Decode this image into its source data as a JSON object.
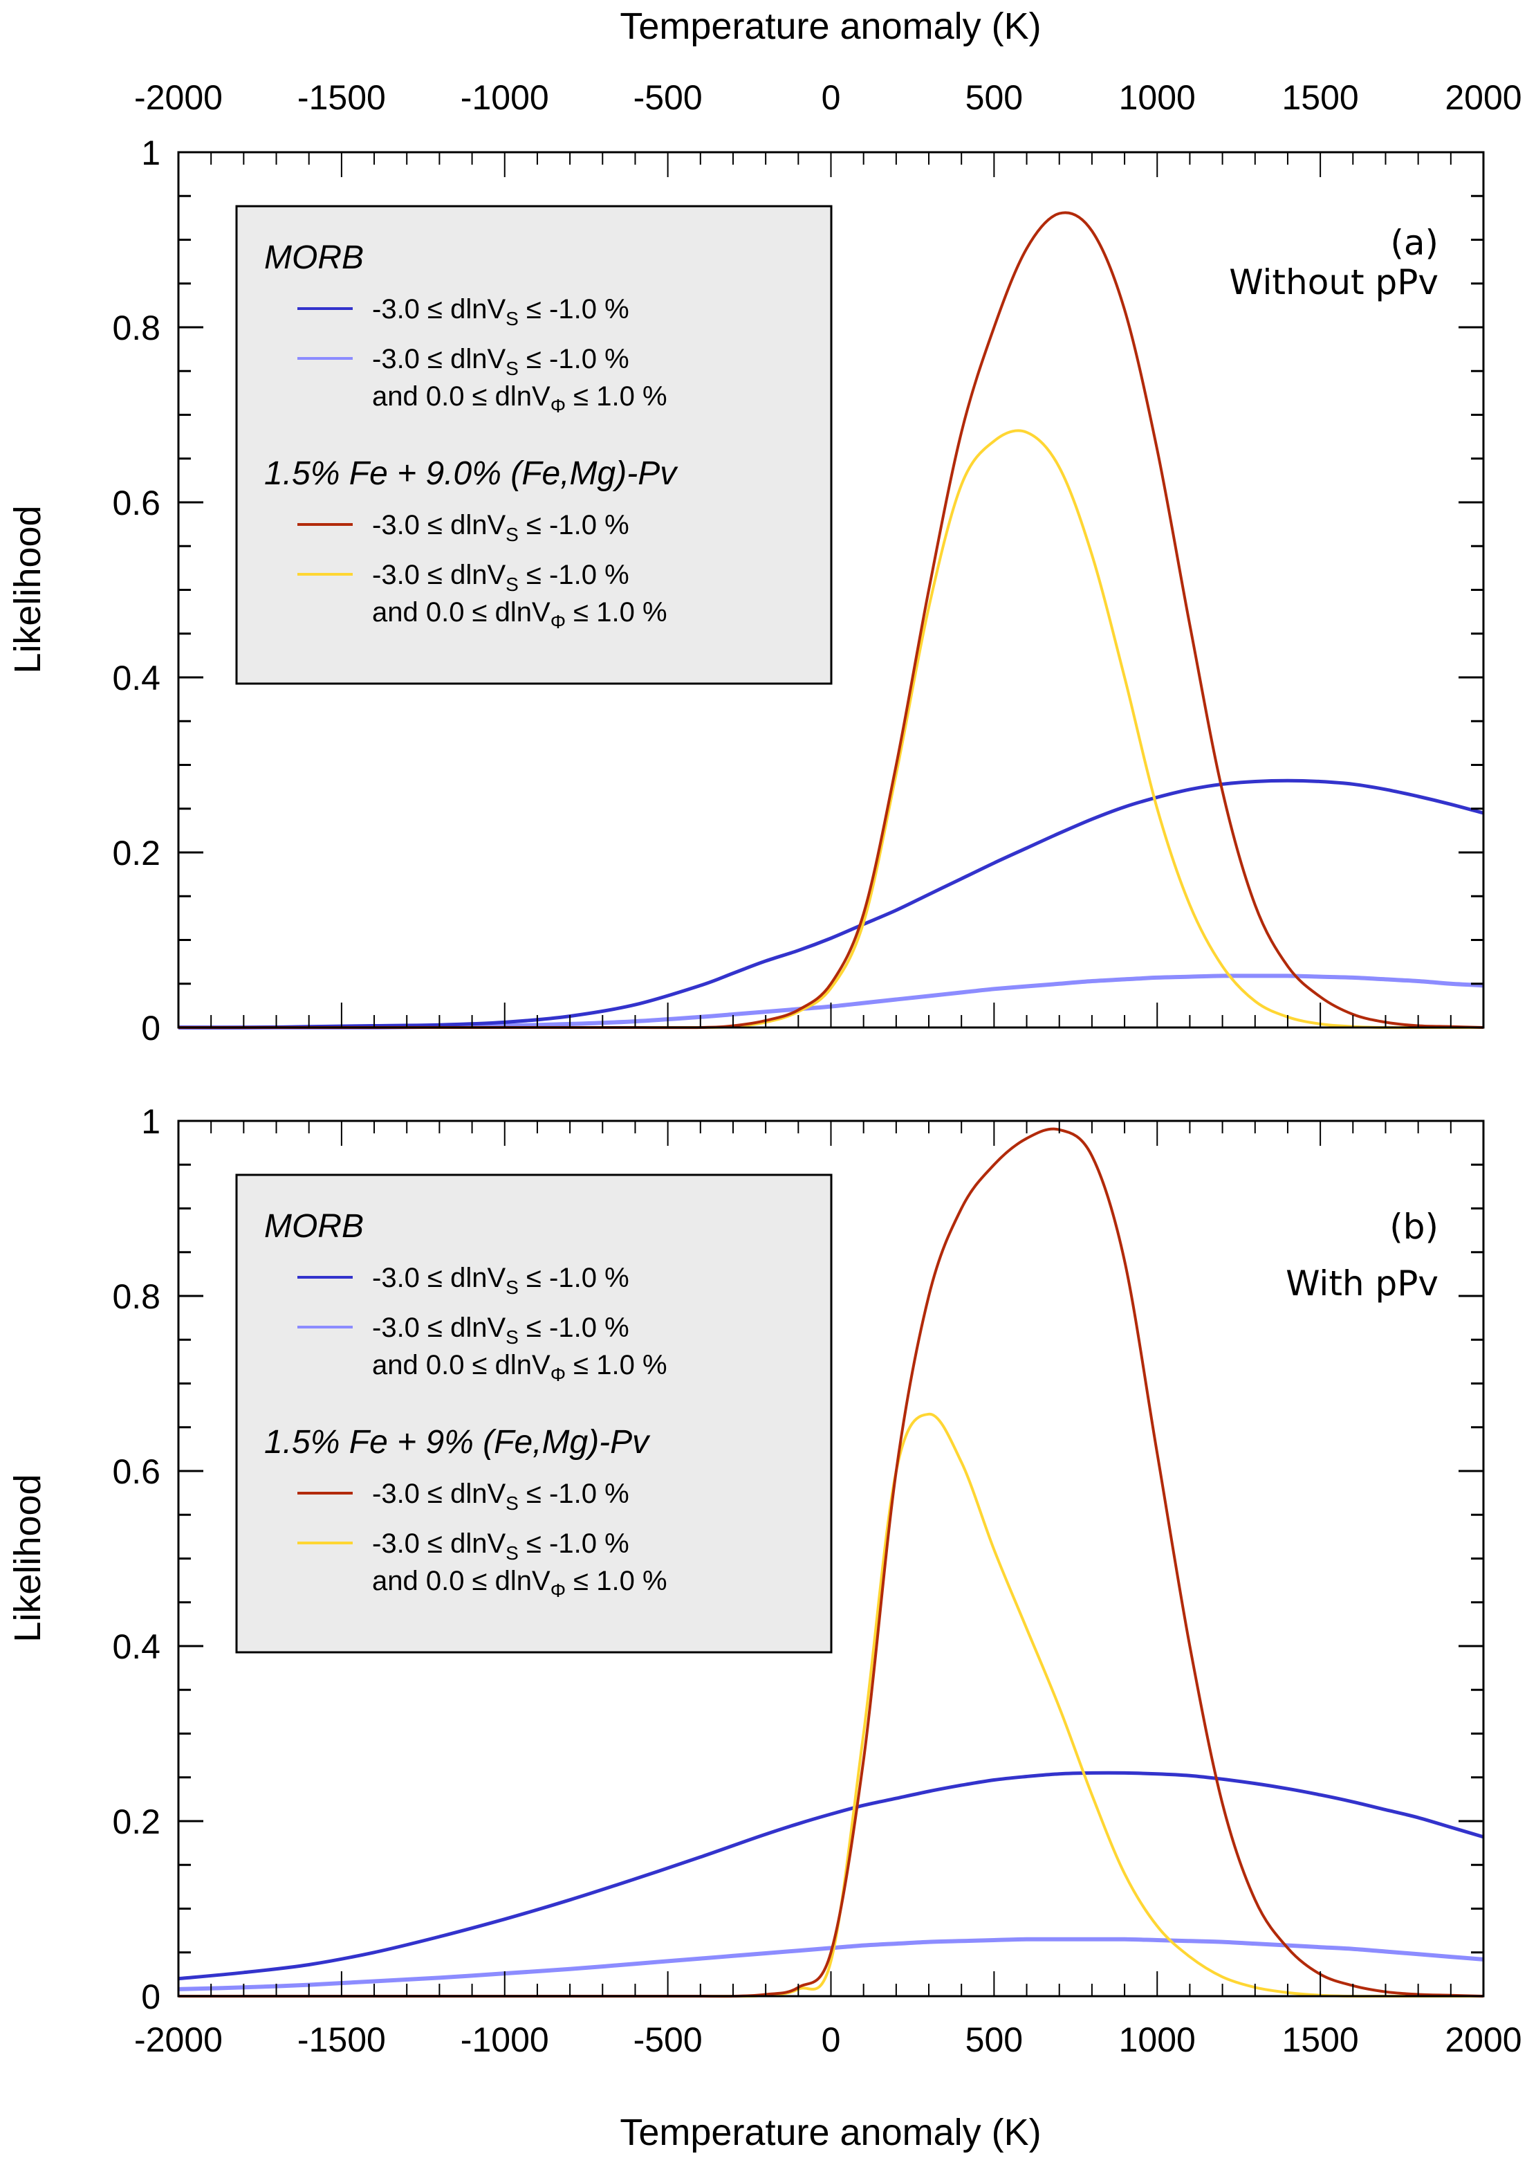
{
  "figure": {
    "top_axis_title": "Temperature anomaly (K)",
    "bottom_axis_title": "Temperature anomaly (K)"
  },
  "chart_data": [
    {
      "type": "line",
      "panel": "a",
      "panel_label": "(a)",
      "panel_subtitle": "Without pPv",
      "xlabel": "Temperature anomaly (K)",
      "xlabel_position": "top",
      "ylabel": "Likelihood",
      "xlim": [
        -2000,
        2000
      ],
      "ylim": [
        0,
        1
      ],
      "x_ticks": [
        -2000,
        -1500,
        -1000,
        -500,
        0,
        500,
        1000,
        1500,
        2000
      ],
      "x_tick_labels": [
        "-2000",
        "-1500",
        "-1000",
        "-500",
        "0",
        "500",
        "1000",
        "1500",
        "2000"
      ],
      "x_minor_step": 100,
      "y_ticks": [
        0,
        0.2,
        0.4,
        0.6,
        0.8,
        1
      ],
      "y_tick_labels": [
        "0",
        "0.2",
        "0.4",
        "0.6",
        "0.8",
        "1"
      ],
      "y_minor_step": 0.05,
      "grid": false,
      "legend": {
        "placement": "top-left",
        "groups": [
          {
            "heading": "MORB",
            "entries": [
              {
                "series": 0,
                "line1_pre": "-3.0 ≤ dlnV",
                "line1_sub": "S",
                "line1_post": " ≤ -1.0 %",
                "line2_pre": "",
                "line2_sub": "",
                "line2_post": ""
              },
              {
                "series": 1,
                "line1_pre": "-3.0 ≤ dlnV",
                "line1_sub": "S",
                "line1_post": " ≤ -1.0 %",
                "line2_pre": "and 0.0 ≤ dlnV",
                "line2_sub": "Φ",
                "line2_post": " ≤ 1.0 %"
              }
            ]
          },
          {
            "heading": "1.5% Fe + 9.0% (Fe,Mg)-Pv",
            "entries": [
              {
                "series": 2,
                "line1_pre": "-3.0 ≤ dlnV",
                "line1_sub": "S",
                "line1_post": " ≤ -1.0 %",
                "line2_pre": "",
                "line2_sub": "",
                "line2_post": ""
              },
              {
                "series": 3,
                "line1_pre": "-3.0 ≤ dlnV",
                "line1_sub": "S",
                "line1_post": " ≤ -1.0 %",
                "line2_pre": "and 0.0 ≤ dlnV",
                "line2_sub": "Φ",
                "line2_post": " ≤ 1.0 %"
              }
            ]
          }
        ]
      },
      "x": [
        -2000,
        -1800,
        -1600,
        -1400,
        -1200,
        -1000,
        -800,
        -600,
        -400,
        -300,
        -200,
        -100,
        0,
        100,
        200,
        300,
        400,
        500,
        600,
        700,
        800,
        900,
        1000,
        1100,
        1200,
        1300,
        1400,
        1500,
        1600,
        1700,
        1800,
        1900,
        2000
      ],
      "series": [
        {
          "name": "MORB: -3.0 ≤ dlnVS ≤ -1.0 %",
          "color": "#3333cc",
          "values": [
            0.0,
            0.0,
            0.001,
            0.002,
            0.003,
            0.006,
            0.013,
            0.026,
            0.048,
            0.062,
            0.076,
            0.088,
            0.102,
            0.118,
            0.134,
            0.152,
            0.17,
            0.188,
            0.205,
            0.222,
            0.238,
            0.252,
            0.263,
            0.272,
            0.278,
            0.281,
            0.282,
            0.281,
            0.278,
            0.272,
            0.264,
            0.255,
            0.245
          ]
        },
        {
          "name": "MORB: -3.0 ≤ dlnVS ≤ -1.0 % and 0.0 ≤ dlnVΦ ≤ 1.0 %",
          "color": "#8c8cff",
          "values": [
            0.0,
            0.0,
            0.0,
            0.0,
            0.001,
            0.002,
            0.004,
            0.007,
            0.012,
            0.015,
            0.018,
            0.021,
            0.024,
            0.028,
            0.032,
            0.036,
            0.04,
            0.044,
            0.047,
            0.05,
            0.053,
            0.055,
            0.057,
            0.058,
            0.059,
            0.059,
            0.059,
            0.058,
            0.057,
            0.055,
            0.053,
            0.05,
            0.048
          ]
        },
        {
          "name": "1.5% Fe + 9.0% (Fe,Mg)-Pv: -3.0 ≤ dlnVS ≤ -1.0 %",
          "color": "#b22a0a",
          "values": [
            0.0,
            0.0,
            0.0,
            0.0,
            0.0,
            0.0,
            0.0,
            0.0,
            0.0,
            0.002,
            0.008,
            0.02,
            0.05,
            0.13,
            0.3,
            0.5,
            0.68,
            0.8,
            0.89,
            0.93,
            0.91,
            0.82,
            0.66,
            0.46,
            0.27,
            0.14,
            0.07,
            0.035,
            0.015,
            0.006,
            0.002,
            0.001,
            0.0
          ]
        },
        {
          "name": "1.5% Fe + 9.0% (Fe,Mg)-Pv: -3.0 ≤ dlnVS ≤ -1.0 % and 0.0 ≤ dlnVΦ ≤ 1.0 %",
          "color": "#ffd633",
          "values": [
            0.0,
            0.0,
            0.0,
            0.0,
            0.0,
            0.0,
            0.0,
            0.0,
            0.0,
            0.001,
            0.006,
            0.018,
            0.045,
            0.12,
            0.29,
            0.48,
            0.62,
            0.67,
            0.68,
            0.64,
            0.54,
            0.4,
            0.25,
            0.14,
            0.07,
            0.03,
            0.012,
            0.004,
            0.001,
            0.0,
            0.0,
            0.0,
            0.0
          ]
        }
      ]
    },
    {
      "type": "line",
      "panel": "b",
      "panel_label": "(b)",
      "panel_subtitle": "With pPv",
      "xlabel": "Temperature anomaly (K)",
      "xlabel_position": "bottom",
      "ylabel": "Likelihood",
      "xlim": [
        -2000,
        2000
      ],
      "ylim": [
        0,
        1
      ],
      "x_ticks": [
        -2000,
        -1500,
        -1000,
        -500,
        0,
        500,
        1000,
        1500,
        2000
      ],
      "x_tick_labels": [
        "-2000",
        "-1500",
        "-1000",
        "-500",
        "0",
        "500",
        "1000",
        "1500",
        "2000"
      ],
      "x_minor_step": 100,
      "y_ticks": [
        0,
        0.2,
        0.4,
        0.6,
        0.8,
        1
      ],
      "y_tick_labels": [
        "0",
        "0.2",
        "0.4",
        "0.6",
        "0.8",
        "1"
      ],
      "y_minor_step": 0.05,
      "grid": false,
      "legend": {
        "placement": "top-left",
        "groups": [
          {
            "heading": "MORB",
            "entries": [
              {
                "series": 0,
                "line1_pre": "-3.0 ≤ dlnV",
                "line1_sub": "S",
                "line1_post": " ≤ -1.0 %",
                "line2_pre": "",
                "line2_sub": "",
                "line2_post": ""
              },
              {
                "series": 1,
                "line1_pre": "-3.0 ≤ dlnV",
                "line1_sub": "S",
                "line1_post": " ≤ -1.0 %",
                "line2_pre": "and 0.0 ≤ dlnV",
                "line2_sub": "Φ",
                "line2_post": " ≤ 1.0 %"
              }
            ]
          },
          {
            "heading": "1.5% Fe + 9% (Fe,Mg)-Pv",
            "entries": [
              {
                "series": 2,
                "line1_pre": "-3.0 ≤ dlnV",
                "line1_sub": "S",
                "line1_post": " ≤ -1.0 %",
                "line2_pre": "",
                "line2_sub": "",
                "line2_post": ""
              },
              {
                "series": 3,
                "line1_pre": "-3.0 ≤ dlnV",
                "line1_sub": "S",
                "line1_post": " ≤ -1.0 %",
                "line2_pre": "and 0.0 ≤ dlnV",
                "line2_sub": "Φ",
                "line2_post": " ≤ 1.0 %"
              }
            ]
          }
        ]
      },
      "x": [
        -2000,
        -1800,
        -1600,
        -1400,
        -1200,
        -1000,
        -800,
        -600,
        -400,
        -300,
        -200,
        -100,
        0,
        100,
        200,
        300,
        400,
        500,
        600,
        700,
        800,
        900,
        1000,
        1100,
        1200,
        1300,
        1400,
        1500,
        1600,
        1700,
        1800,
        1900,
        2000
      ],
      "series": [
        {
          "name": "MORB: -3.0 ≤ dlnVS ≤ -1.0 %",
          "color": "#3333cc",
          "values": [
            0.02,
            0.027,
            0.036,
            0.05,
            0.068,
            0.088,
            0.11,
            0.134,
            0.159,
            0.172,
            0.185,
            0.197,
            0.208,
            0.218,
            0.226,
            0.234,
            0.241,
            0.247,
            0.251,
            0.254,
            0.255,
            0.255,
            0.254,
            0.252,
            0.248,
            0.243,
            0.237,
            0.23,
            0.222,
            0.213,
            0.204,
            0.193,
            0.182
          ]
        },
        {
          "name": "MORB: -3.0 ≤ dlnVS ≤ -1.0 % and 0.0 ≤ dlnVΦ ≤ 1.0 %",
          "color": "#8c8cff",
          "values": [
            0.008,
            0.01,
            0.013,
            0.017,
            0.021,
            0.026,
            0.031,
            0.037,
            0.043,
            0.046,
            0.049,
            0.052,
            0.055,
            0.058,
            0.06,
            0.062,
            0.063,
            0.064,
            0.065,
            0.065,
            0.065,
            0.065,
            0.064,
            0.063,
            0.062,
            0.06,
            0.058,
            0.056,
            0.054,
            0.051,
            0.048,
            0.045,
            0.042
          ]
        },
        {
          "name": "1.5% Fe + 9% (Fe,Mg)-Pv: -3.0 ≤ dlnVS ≤ -1.0 %",
          "color": "#b22a0a",
          "values": [
            0.0,
            0.0,
            0.0,
            0.0,
            0.0,
            0.0,
            0.0,
            0.0,
            0.0,
            0.0,
            0.002,
            0.01,
            0.05,
            0.27,
            0.6,
            0.8,
            0.9,
            0.95,
            0.98,
            0.99,
            0.96,
            0.84,
            0.62,
            0.4,
            0.22,
            0.11,
            0.055,
            0.025,
            0.012,
            0.005,
            0.002,
            0.001,
            0.0
          ]
        },
        {
          "name": "1.5% Fe + 9% (Fe,Mg)-Pv: -3.0 ≤ dlnVS ≤ -1.0 % and 0.0 ≤ dlnVΦ ≤ 1.0 %",
          "color": "#ffd633",
          "values": [
            0.0,
            0.0,
            0.0,
            0.0,
            0.0,
            0.0,
            0.0,
            0.0,
            0.0,
            0.0,
            0.001,
            0.008,
            0.04,
            0.3,
            0.6,
            0.665,
            0.61,
            0.51,
            0.42,
            0.33,
            0.23,
            0.14,
            0.08,
            0.045,
            0.022,
            0.01,
            0.004,
            0.001,
            0.0,
            0.0,
            0.0,
            0.0,
            0.0
          ]
        }
      ]
    }
  ]
}
